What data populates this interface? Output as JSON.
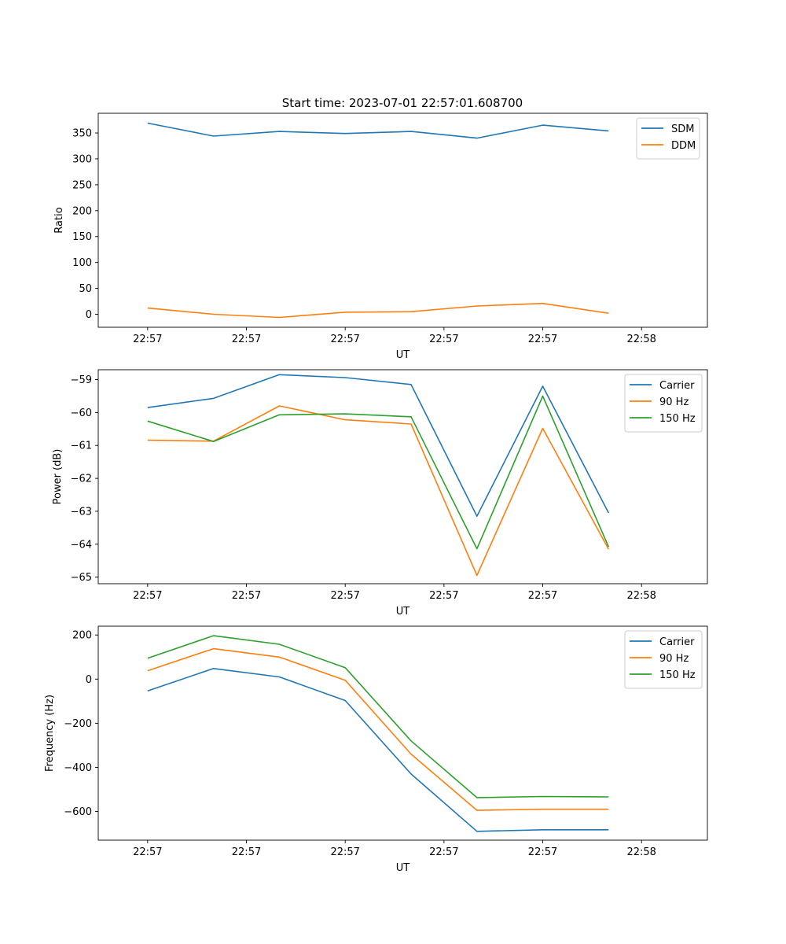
{
  "figure": {
    "title": "Start time: 2023-07-01 22:57:01.608700"
  },
  "chart_data": [
    {
      "type": "line",
      "title": "Start time: 2023-07-01 22:57:01.608700",
      "xlabel": "UT",
      "ylabel": "Ratio",
      "x_ticks": [
        "22:57",
        "22:57",
        "22:57",
        "22:57",
        "22:57",
        "22:58"
      ],
      "x_index_range": [
        -0.75,
        8.5
      ],
      "x": [
        0,
        1,
        2,
        3,
        4,
        5,
        6,
        7
      ],
      "ylim": [
        -25,
        388
      ],
      "y_ticks": [
        0,
        50,
        100,
        150,
        200,
        250,
        300,
        350
      ],
      "legend": "top-right",
      "series": [
        {
          "name": "SDM",
          "color": "#1f77b4",
          "values": [
            369,
            344,
            353,
            349,
            353,
            340,
            365,
            354
          ]
        },
        {
          "name": "DDM",
          "color": "#ff7f0e",
          "values": [
            12,
            0,
            -6,
            4,
            5,
            16,
            21,
            2
          ]
        }
      ]
    },
    {
      "type": "line",
      "xlabel": "UT",
      "ylabel": "Power (dB)",
      "x_ticks": [
        "22:57",
        "22:57",
        "22:57",
        "22:57",
        "22:57",
        "22:58"
      ],
      "x_index_range": [
        -0.75,
        8.5
      ],
      "x": [
        0,
        1,
        2,
        3,
        4,
        5,
        6,
        7
      ],
      "ylim": [
        -65.2,
        -58.7
      ],
      "y_ticks": [
        -65,
        -64,
        -63,
        -62,
        -61,
        -60,
        -59
      ],
      "legend": "top-right",
      "series": [
        {
          "name": "Carrier",
          "color": "#1f77b4",
          "values": [
            -59.85,
            -59.57,
            -58.85,
            -58.94,
            -59.15,
            -63.15,
            -59.2,
            -63.05
          ]
        },
        {
          "name": "90 Hz",
          "color": "#ff7f0e",
          "values": [
            -60.84,
            -60.87,
            -59.8,
            -60.22,
            -60.35,
            -64.95,
            -60.48,
            -64.15
          ]
        },
        {
          "name": "150 Hz",
          "color": "#2ca02c",
          "values": [
            -60.26,
            -60.88,
            -60.07,
            -60.04,
            -60.13,
            -64.14,
            -59.5,
            -64.08
          ]
        }
      ]
    },
    {
      "type": "line",
      "xlabel": "UT",
      "ylabel": "Frequency (Hz)",
      "x_ticks": [
        "22:57",
        "22:57",
        "22:57",
        "22:57",
        "22:57",
        "22:58"
      ],
      "x_index_range": [
        -0.75,
        8.5
      ],
      "x": [
        0,
        1,
        2,
        3,
        4,
        5,
        6,
        7
      ],
      "ylim": [
        -730,
        240
      ],
      "y_ticks": [
        -600,
        -400,
        -200,
        0,
        200
      ],
      "legend": "top-right",
      "series": [
        {
          "name": "Carrier",
          "color": "#1f77b4",
          "values": [
            -53,
            48,
            10,
            -97,
            -430,
            -690,
            -683,
            -683
          ]
        },
        {
          "name": "90 Hz",
          "color": "#ff7f0e",
          "values": [
            38,
            138,
            100,
            -5,
            -340,
            -595,
            -590,
            -590
          ]
        },
        {
          "name": "150 Hz",
          "color": "#2ca02c",
          "values": [
            95,
            197,
            158,
            52,
            -280,
            -537,
            -532,
            -534
          ]
        }
      ]
    }
  ]
}
